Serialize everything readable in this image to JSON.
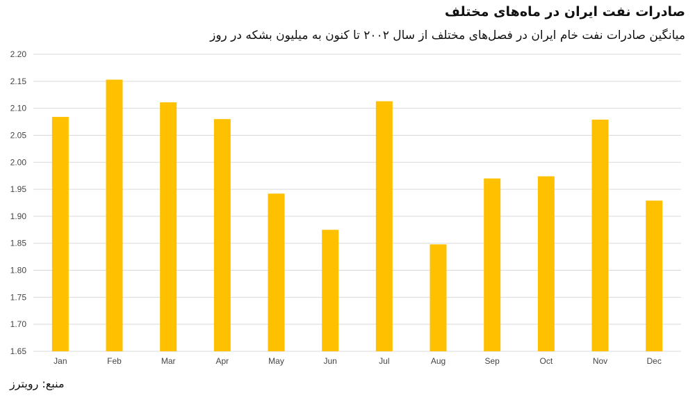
{
  "chart_data": {
    "type": "bar",
    "title": "صادرات نفت ایران در ماه‌های مختلف",
    "subtitle": "میانگین صادرات نفت خام ایران در فصل‌های مختلف از سال ۲۰۰۲ تا کنون به میلیون بشکه در روز",
    "categories": [
      "Jan",
      "Feb",
      "Mar",
      "Apr",
      "May",
      "Jun",
      "Jul",
      "Aug",
      "Sep",
      "Oct",
      "Nov",
      "Dec"
    ],
    "values": [
      2.084,
      2.153,
      2.111,
      2.08,
      1.942,
      1.875,
      2.113,
      1.848,
      1.97,
      1.974,
      2.079,
      1.929
    ],
    "ylim": [
      1.65,
      2.2
    ],
    "yticks": [
      "1.65",
      "1.70",
      "1.75",
      "1.80",
      "1.85",
      "1.90",
      "1.95",
      "2.00",
      "2.05",
      "2.10",
      "2.15",
      "2.20"
    ],
    "grid": true,
    "bar_color": "#FFC000",
    "grid_color": "#D9D9D9",
    "source": "منبع: رویترز"
  }
}
